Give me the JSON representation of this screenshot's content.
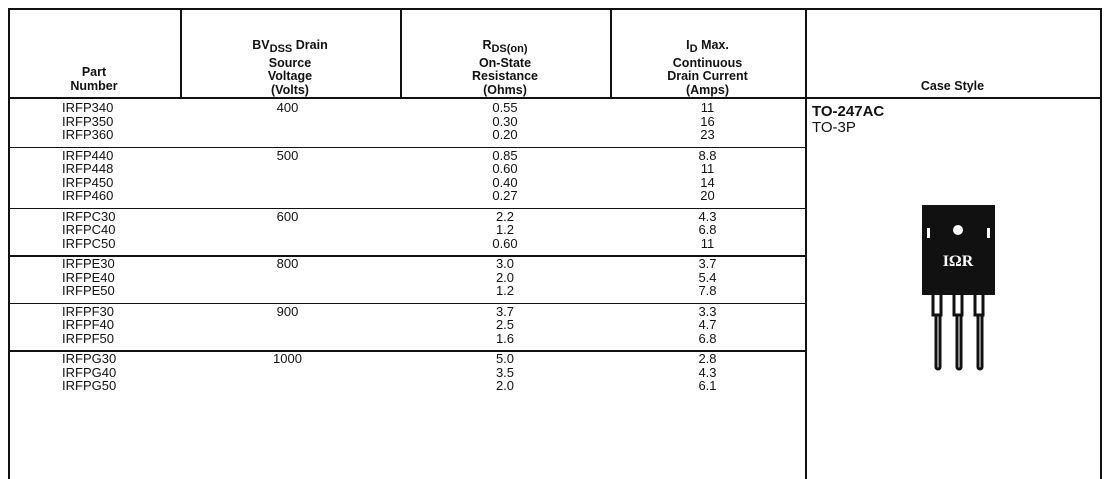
{
  "table": {
    "header": [
      {
        "lines": [
          "Part",
          "Number"
        ]
      },
      {
        "prefix": "BV",
        "sub": "DSS",
        "suffix": "Drain",
        "lines": [
          "Source",
          "Voltage",
          "(Volts)"
        ]
      },
      {
        "prefix": "R",
        "sub": "DS(on)",
        "lines": [
          "On-State",
          "Resistance",
          "(Ohms)"
        ]
      },
      {
        "prefix": "I",
        "sub": "D",
        "suffix": "Max.",
        "lines": [
          "Continuous",
          "Drain Current",
          "(Amps)"
        ]
      },
      {
        "lines": [
          "Case Style"
        ]
      }
    ],
    "groups": [
      {
        "voltage": "400",
        "rows": [
          [
            "IRFP340",
            "0.55",
            "11"
          ],
          [
            "IRFP350",
            "0.30",
            "16"
          ],
          [
            "IRFP360",
            "0.20",
            "23"
          ]
        ]
      },
      {
        "voltage": "500",
        "rows": [
          [
            "IRFP440",
            "0.85",
            "8.8"
          ],
          [
            "IRFP448",
            "0.60",
            "11"
          ],
          [
            "IRFP450",
            "0.40",
            "14"
          ],
          [
            "IRFP460",
            "0.27",
            "20"
          ]
        ]
      },
      {
        "voltage": "600",
        "rows": [
          [
            "IRFPC30",
            "2.2",
            "4.3"
          ],
          [
            "IRFPC40",
            "1.2",
            "6.8"
          ],
          [
            "IRFPC50",
            "0.60",
            "11"
          ]
        ]
      },
      {
        "voltage": "800",
        "rows": [
          [
            "IRFPE30",
            "3.0",
            "3.7"
          ],
          [
            "IRFPE40",
            "2.0",
            "5.4"
          ],
          [
            "IRFPE50",
            "1.2",
            "7.8"
          ]
        ]
      },
      {
        "voltage": "900",
        "rows": [
          [
            "IRFPF30",
            "3.7",
            "3.3"
          ],
          [
            "IRFPF40",
            "2.5",
            "4.7"
          ],
          [
            "IRFPF50",
            "1.6",
            "6.8"
          ]
        ]
      },
      {
        "voltage": "1000",
        "rows": [
          [
            "IRFPG30",
            "5.0",
            "2.8"
          ],
          [
            "IRFPG40",
            "3.5",
            "4.3"
          ],
          [
            "IRFPG50",
            "2.0",
            "6.1"
          ]
        ]
      }
    ],
    "case_style": {
      "name": "TO-247AC",
      "alt": "TO-3P",
      "logo": "IΩR"
    }
  }
}
